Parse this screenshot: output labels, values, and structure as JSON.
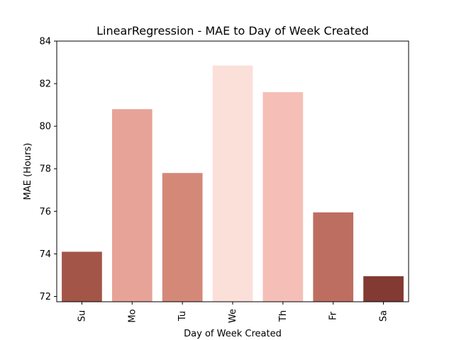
{
  "chart_data": {
    "type": "bar",
    "title": "LinearRegression - MAE to Day of Week Created",
    "xlabel": "Day of Week Created",
    "ylabel": "MAE (Hours)",
    "categories": [
      "Su",
      "Mo",
      "Tu",
      "We",
      "Th",
      "Fr",
      "Sa"
    ],
    "values": [
      74.1,
      80.8,
      77.8,
      82.85,
      81.6,
      75.95,
      72.95
    ],
    "colors": [
      "#a35548",
      "#e7a398",
      "#d48878",
      "#fbdfd9",
      "#f5bfb7",
      "#bd6e61",
      "#823a33"
    ],
    "ylim": [
      71.75,
      84
    ],
    "yticks": [
      72,
      74,
      76,
      78,
      80,
      82,
      84
    ],
    "grid": false,
    "legend": "none"
  }
}
